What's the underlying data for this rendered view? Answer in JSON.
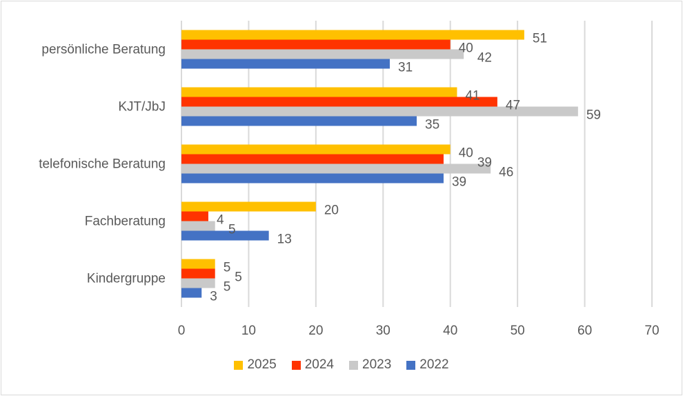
{
  "chart_data": {
    "type": "bar",
    "orientation": "horizontal",
    "categories": [
      "persönliche Beratung",
      "KJT/JbJ",
      "telefonische Beratung",
      "Fachberatung",
      "Kindergruppe"
    ],
    "series": [
      {
        "name": "2025",
        "color": "#FFC000",
        "values": [
          51,
          41,
          40,
          20,
          5
        ]
      },
      {
        "name": "2024",
        "color": "#FF3300",
        "values": [
          40,
          47,
          39,
          4,
          5
        ]
      },
      {
        "name": "2023",
        "color": "#C9C9C9",
        "values": [
          42,
          59,
          46,
          5,
          5
        ]
      },
      {
        "name": "2022",
        "color": "#4472C4",
        "values": [
          31,
          35,
          39,
          13,
          3
        ]
      }
    ],
    "xticks": [
      "0",
      "10",
      "20",
      "30",
      "40",
      "50",
      "60",
      "70"
    ],
    "xlim": [
      0,
      70
    ],
    "grid": true,
    "data_labels": true,
    "legend": "bottom"
  }
}
